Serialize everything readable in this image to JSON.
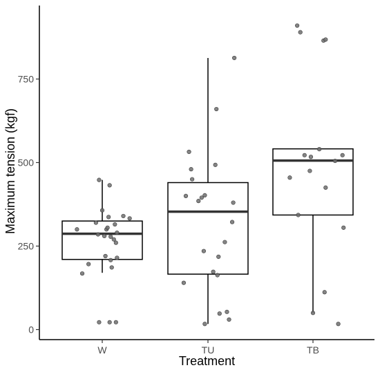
{
  "chart_data": {
    "type": "boxplot",
    "title": "",
    "xlabel": "Treatment",
    "ylabel": "Maximum tension (kgf)",
    "categories": [
      "W",
      "TU",
      "TB"
    ],
    "ylim": [
      -30,
      970
    ],
    "yticks": [
      0,
      250,
      500,
      750
    ],
    "grid": false,
    "legend": "none",
    "colors": {
      "box_stroke": "#000000",
      "median": "#333333",
      "point_fill": "#6e6e6e",
      "point_stroke": "#3a3a3a"
    },
    "boxes": [
      {
        "category": "W",
        "whisker_low": 170,
        "q1": 210,
        "median": 287,
        "q3": 325,
        "whisker_high": 448
      },
      {
        "category": "TU",
        "whisker_low": 17,
        "q1": 166,
        "median": 353,
        "q3": 440,
        "whisker_high": 813
      },
      {
        "category": "TB",
        "whisker_low": 50,
        "q1": 343,
        "median": 506,
        "q3": 541,
        "whisker_high": 541
      }
    ],
    "points": [
      {
        "category": "W",
        "jitter": -0.24,
        "value": 300
      },
      {
        "category": "W",
        "jitter": -0.19,
        "value": 168
      },
      {
        "category": "W",
        "jitter": -0.13,
        "value": 196
      },
      {
        "category": "W",
        "jitter": -0.06,
        "value": 320
      },
      {
        "category": "W",
        "jitter": -0.03,
        "value": 22
      },
      {
        "category": "W",
        "jitter": -0.03,
        "value": 448
      },
      {
        "category": "W",
        "jitter": -0.04,
        "value": 285
      },
      {
        "category": "W",
        "jitter": 0.0,
        "value": 357
      },
      {
        "category": "W",
        "jitter": 0.02,
        "value": 280
      },
      {
        "category": "W",
        "jitter": 0.03,
        "value": 220
      },
      {
        "category": "W",
        "jitter": 0.04,
        "value": 300
      },
      {
        "category": "W",
        "jitter": 0.05,
        "value": 305
      },
      {
        "category": "W",
        "jitter": 0.06,
        "value": 337
      },
      {
        "category": "W",
        "jitter": 0.07,
        "value": 432
      },
      {
        "category": "W",
        "jitter": 0.07,
        "value": 22
      },
      {
        "category": "W",
        "jitter": 0.08,
        "value": 278
      },
      {
        "category": "W",
        "jitter": 0.08,
        "value": 208
      },
      {
        "category": "W",
        "jitter": 0.09,
        "value": 186
      },
      {
        "category": "W",
        "jitter": 0.11,
        "value": 270
      },
      {
        "category": "W",
        "jitter": 0.12,
        "value": 315
      },
      {
        "category": "W",
        "jitter": 0.13,
        "value": 22
      },
      {
        "category": "W",
        "jitter": 0.13,
        "value": 260
      },
      {
        "category": "W",
        "jitter": 0.14,
        "value": 215
      },
      {
        "category": "W",
        "jitter": 0.14,
        "value": 290
      },
      {
        "category": "W",
        "jitter": 0.2,
        "value": 340
      },
      {
        "category": "W",
        "jitter": 0.26,
        "value": 333
      },
      {
        "category": "TU",
        "jitter": -0.23,
        "value": 140
      },
      {
        "category": "TU",
        "jitter": -0.21,
        "value": 400
      },
      {
        "category": "TU",
        "jitter": -0.18,
        "value": 532
      },
      {
        "category": "TU",
        "jitter": -0.16,
        "value": 480
      },
      {
        "category": "TU",
        "jitter": -0.15,
        "value": 450
      },
      {
        "category": "TU",
        "jitter": -0.09,
        "value": 385
      },
      {
        "category": "TU",
        "jitter": -0.06,
        "value": 395
      },
      {
        "category": "TU",
        "jitter": -0.04,
        "value": 235
      },
      {
        "category": "TU",
        "jitter": -0.03,
        "value": 402
      },
      {
        "category": "TU",
        "jitter": -0.03,
        "value": 17
      },
      {
        "category": "TU",
        "jitter": 0.05,
        "value": 173
      },
      {
        "category": "TU",
        "jitter": 0.07,
        "value": 493
      },
      {
        "category": "TU",
        "jitter": 0.08,
        "value": 660
      },
      {
        "category": "TU",
        "jitter": 0.09,
        "value": 163
      },
      {
        "category": "TU",
        "jitter": 0.1,
        "value": 218
      },
      {
        "category": "TU",
        "jitter": 0.11,
        "value": 48
      },
      {
        "category": "TU",
        "jitter": 0.16,
        "value": 262
      },
      {
        "category": "TU",
        "jitter": 0.18,
        "value": 53
      },
      {
        "category": "TU",
        "jitter": 0.2,
        "value": 30
      },
      {
        "category": "TU",
        "jitter": 0.23,
        "value": 322
      },
      {
        "category": "TU",
        "jitter": 0.24,
        "value": 380
      },
      {
        "category": "TU",
        "jitter": 0.25,
        "value": 813
      },
      {
        "category": "TB",
        "jitter": -0.22,
        "value": 455
      },
      {
        "category": "TB",
        "jitter": -0.15,
        "value": 910
      },
      {
        "category": "TB",
        "jitter": -0.12,
        "value": 890
      },
      {
        "category": "TB",
        "jitter": -0.14,
        "value": 343
      },
      {
        "category": "TB",
        "jitter": -0.08,
        "value": 522
      },
      {
        "category": "TB",
        "jitter": -0.02,
        "value": 517
      },
      {
        "category": "TB",
        "jitter": -0.03,
        "value": 475
      },
      {
        "category": "TB",
        "jitter": 0.0,
        "value": 50
      },
      {
        "category": "TB",
        "jitter": 0.06,
        "value": 540
      },
      {
        "category": "TB",
        "jitter": 0.1,
        "value": 865
      },
      {
        "category": "TB",
        "jitter": 0.12,
        "value": 868
      },
      {
        "category": "TB",
        "jitter": 0.12,
        "value": 425
      },
      {
        "category": "TB",
        "jitter": 0.11,
        "value": 112
      },
      {
        "category": "TB",
        "jitter": 0.21,
        "value": 505
      },
      {
        "category": "TB",
        "jitter": 0.24,
        "value": 17
      },
      {
        "category": "TB",
        "jitter": 0.28,
        "value": 522
      },
      {
        "category": "TB",
        "jitter": 0.29,
        "value": 305
      }
    ]
  }
}
